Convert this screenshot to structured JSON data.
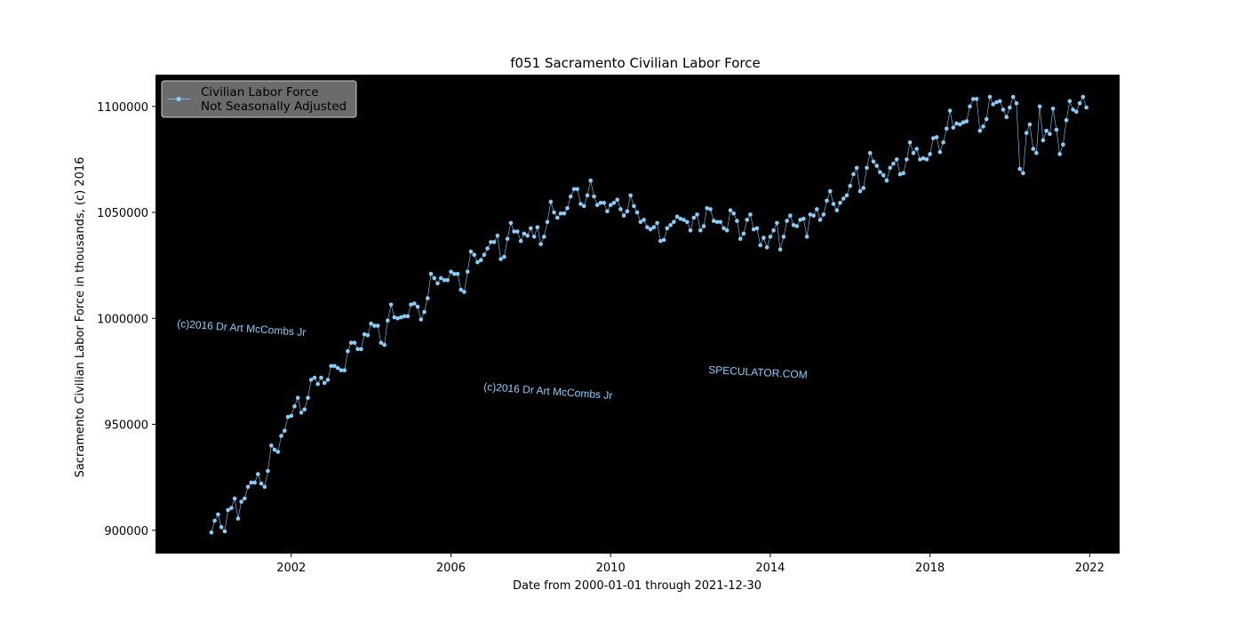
{
  "chart_data": {
    "type": "line",
    "title": "f051 Sacramento Civilian Labor Force",
    "xlabel": "Date from 2000-01-01 through 2021-12-30",
    "ylabel": "Sacramento Civilian Labor Force in thousands, (c) 2016",
    "xlim": [
      1998.6,
      2022.75
    ],
    "ylim": [
      889000,
      1115000
    ],
    "x_ticks": [
      2002,
      2006,
      2010,
      2014,
      2018,
      2022
    ],
    "x_tick_labels": [
      "2002",
      "2006",
      "2010",
      "2014",
      "2018",
      "2022"
    ],
    "y_ticks": [
      900000,
      950000,
      1000000,
      1050000,
      1100000
    ],
    "y_tick_labels": [
      "900000",
      "950000",
      "1000000",
      "1050000",
      "1100000"
    ],
    "legend": {
      "placement": "top-left",
      "entries": [
        "Civilian Labor Force",
        "Not Seasonally Adjusted"
      ]
    },
    "background": "#000000",
    "series_color": "#87cefa",
    "grid": false,
    "annotations": [
      "(c)2016 Dr Art McCombs Jr",
      "(c)2016 Dr Art McCombs Jr",
      "SPECULATOR.COM"
    ],
    "series": [
      {
        "name": "Civilian Labor Force Not Seasonally Adjusted",
        "start": "2000-01",
        "frequency": "monthly",
        "values": [
          899000,
          904500,
          907500,
          901500,
          899500,
          909500,
          910500,
          915000,
          905500,
          913500,
          915000,
          920500,
          922500,
          922500,
          926500,
          922000,
          920500,
          928000,
          940000,
          938000,
          937000,
          944500,
          947000,
          953500,
          954000,
          958500,
          962500,
          955500,
          957000,
          962500,
          971000,
          972000,
          969000,
          972000,
          969500,
          971000,
          977500,
          977500,
          976500,
          975500,
          975500,
          984500,
          988500,
          988500,
          985500,
          985500,
          992500,
          992000,
          997500,
          996500,
          996500,
          988500,
          987500,
          999000,
          1006500,
          1000500,
          1000000,
          1000500,
          1001000,
          1001000,
          1006500,
          1007000,
          1005500,
          999500,
          1003000,
          1009500,
          1021000,
          1019000,
          1016500,
          1019000,
          1018000,
          1018000,
          1022000,
          1021000,
          1021000,
          1013500,
          1012500,
          1022000,
          1031500,
          1030000,
          1026500,
          1027500,
          1030000,
          1033000,
          1036000,
          1036000,
          1039000,
          1028000,
          1029000,
          1037500,
          1045000,
          1041000,
          1041000,
          1036500,
          1040000,
          1039000,
          1042500,
          1038500,
          1043000,
          1035000,
          1038500,
          1045500,
          1055000,
          1050000,
          1047500,
          1049500,
          1049500,
          1052000,
          1057500,
          1061000,
          1061000,
          1054000,
          1053000,
          1058000,
          1065000,
          1057500,
          1053500,
          1054500,
          1054500,
          1050500,
          1053500,
          1054500,
          1056000,
          1051500,
          1048500,
          1050500,
          1058000,
          1053000,
          1050000,
          1045500,
          1046500,
          1043000,
          1042000,
          1043000,
          1045000,
          1036500,
          1037000,
          1042500,
          1044000,
          1045500,
          1048000,
          1047000,
          1046500,
          1045500,
          1041500,
          1047500,
          1049000,
          1041500,
          1043500,
          1052000,
          1051500,
          1046000,
          1045500,
          1045500,
          1042500,
          1041500,
          1051000,
          1049500,
          1046000,
          1037500,
          1040000,
          1046500,
          1049000,
          1042000,
          1042500,
          1034500,
          1038000,
          1033500,
          1038500,
          1041500,
          1045000,
          1032500,
          1038500,
          1046000,
          1048500,
          1044000,
          1043500,
          1046500,
          1047000,
          1038500,
          1049000,
          1048500,
          1051500,
          1046500,
          1049000,
          1055500,
          1060000,
          1054000,
          1051000,
          1054500,
          1056500,
          1058000,
          1062500,
          1068000,
          1071000,
          1060000,
          1061500,
          1071000,
          1078000,
          1074000,
          1072000,
          1069000,
          1067500,
          1065000,
          1071000,
          1073000,
          1075000,
          1068000,
          1068500,
          1075000,
          1083000,
          1078000,
          1080000,
          1075000,
          1075500,
          1075000,
          1077500,
          1085000,
          1085500,
          1078500,
          1083000,
          1089500,
          1098000,
          1090000,
          1092000,
          1091500,
          1092500,
          1093000,
          1100000,
          1103500,
          1103500,
          1088500,
          1090500,
          1094000,
          1104500,
          1101000,
          1102000,
          1102500,
          1098500,
          1095000,
          1099500,
          1104500,
          1101500,
          1070500,
          1068500,
          1087500,
          1091500,
          1080000,
          1078000,
          1100000,
          1084000,
          1088500,
          1087000,
          1099000,
          1089000,
          1077500,
          1082000,
          1093500,
          1102500,
          1098500,
          1097500,
          1101500,
          1104500,
          1099500
        ]
      }
    ]
  }
}
